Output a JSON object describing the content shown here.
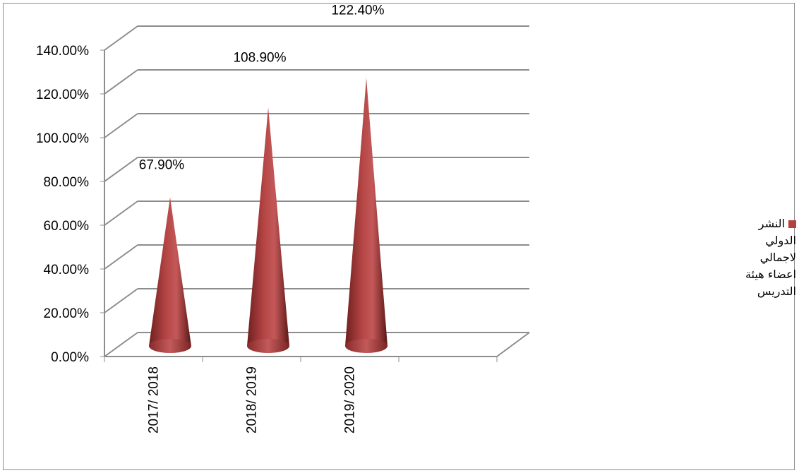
{
  "chart_data": {
    "type": "bar",
    "style": "3d-cone",
    "categories": [
      "2017/ 2018",
      "2018/ 2019",
      "2019/ 2020"
    ],
    "series": [
      {
        "name": "النشر الدولي لاجمالي اعضاء هيئة التدريس",
        "values": [
          67.9,
          108.9,
          122.4
        ],
        "color": "#b54040"
      }
    ],
    "data_labels": [
      "67.90%",
      "108.90%",
      "122.40%"
    ],
    "y_ticks": [
      "0.00%",
      "20.00%",
      "40.00%",
      "60.00%",
      "80.00%",
      "100.00%",
      "120.00%",
      "140.00%"
    ],
    "ylim": [
      0,
      140
    ],
    "grid": true,
    "legend_position": "right"
  }
}
